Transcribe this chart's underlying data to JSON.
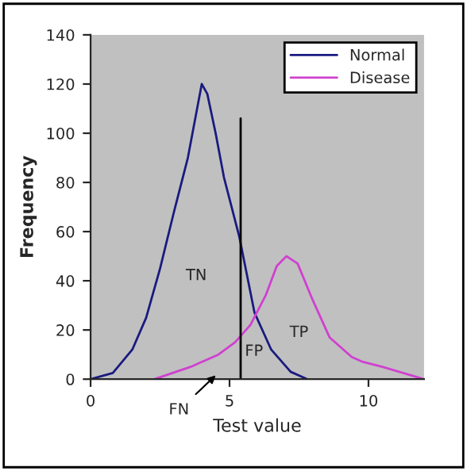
{
  "chart_data": {
    "type": "line",
    "xlabel": "Test value",
    "ylabel": "Frequency",
    "xlim": [
      0,
      12
    ],
    "ylim": [
      0,
      140
    ],
    "xticks": [
      0,
      5,
      10
    ],
    "yticks": [
      0,
      20,
      40,
      60,
      80,
      100,
      120,
      140
    ],
    "series": [
      {
        "name": "Normal",
        "color": "#1a1a80",
        "x": [
          0,
          0.8,
          1.5,
          2,
          2.5,
          3,
          3.5,
          4,
          4.2,
          4.5,
          4.8,
          5.35,
          5.9,
          6.5,
          7.2,
          7.8
        ],
        "values": [
          0,
          2.5,
          12,
          25,
          45,
          68,
          90,
          120,
          116,
          100,
          82,
          58,
          27,
          12,
          3,
          0
        ]
      },
      {
        "name": "Disease",
        "color": "#d040d0",
        "x": [
          2.3,
          3.6,
          4.6,
          5.2,
          5.75,
          6.3,
          6.7,
          7.05,
          7.45,
          8,
          8.6,
          9.4,
          9.8,
          10.5,
          12
        ],
        "values": [
          0,
          5,
          10,
          15,
          22,
          34,
          46,
          50,
          47,
          32,
          17,
          9,
          7,
          5,
          0
        ]
      },
      {
        "type": "line",
        "color": "#000000",
        "x": [
          5.4,
          5.4
        ],
        "values": [
          0,
          106
        ]
      }
    ],
    "annotations": [
      "TN",
      "FP",
      "TP",
      "FN"
    ],
    "legend": "top right",
    "grid": false
  }
}
